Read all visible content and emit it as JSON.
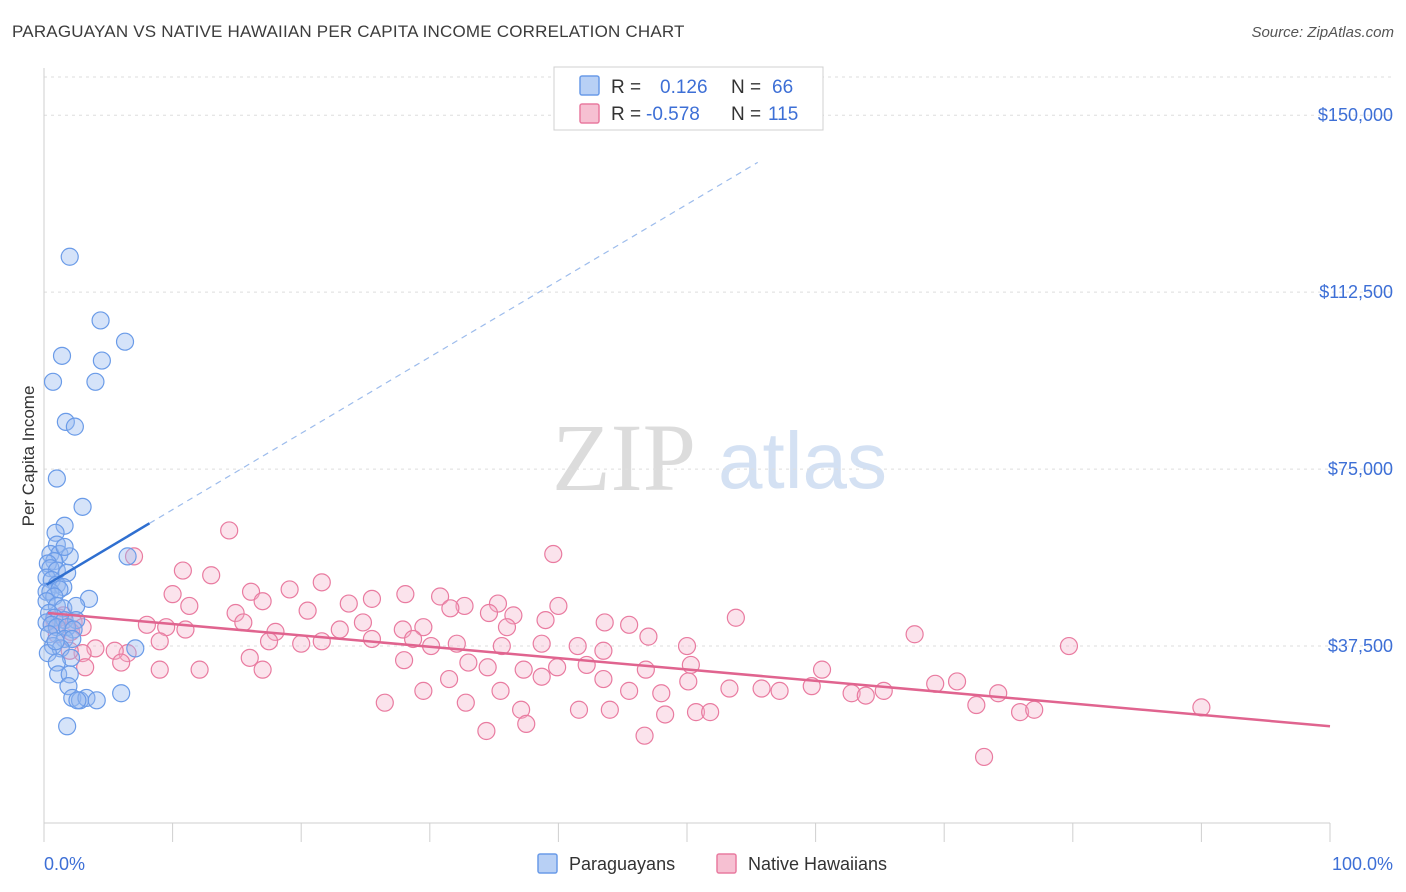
{
  "title": "PARAGUAYAN VS NATIVE HAWAIIAN PER CAPITA INCOME CORRELATION CHART",
  "source": "Source: ZipAtlas.com",
  "watermark": {
    "zip": "ZIP",
    "atlas": "atlas"
  },
  "colors": {
    "blue": "#6a9be8",
    "blue_fill": "#b8d0f5",
    "blue_line": "#2f6fd0",
    "pink": "#e97ba0",
    "pink_fill": "#f6c0d2",
    "pink_line": "#e0648f",
    "accent_text": "#3d6fd6"
  },
  "legend": {
    "rows": [
      {
        "r_label": "R =",
        "r_value": "0.126",
        "n_label": "N =",
        "n_value": "66"
      },
      {
        "r_label": "R =",
        "r_value": "-0.578",
        "n_label": "N =",
        "n_value": "115"
      }
    ]
  },
  "bottom_legend": {
    "items": [
      "Paraguayans",
      "Native Hawaiians"
    ]
  },
  "chart_data": {
    "type": "scatter",
    "title": "PARAGUAYAN VS NATIVE HAWAIIAN PER CAPITA INCOME CORRELATION CHART",
    "xlabel": "",
    "ylabel": "Per Capita Income",
    "xlim": [
      0,
      100
    ],
    "ylim": [
      0,
      160000
    ],
    "x_tick_labels": [
      "0.0%",
      "100.0%"
    ],
    "y_ticks": [
      37500,
      75000,
      112500,
      150000
    ],
    "y_tick_labels": [
      "$37,500",
      "$75,000",
      "$112,500",
      "$150,000"
    ],
    "grid": "horizontal dashed",
    "legend_placement": "top-center",
    "series": [
      {
        "name": "Paraguayans",
        "color": "#6a9be8",
        "r": 0.126,
        "n": 66,
        "trend": {
          "x": [
            0.2,
            8.2
          ],
          "y": [
            50500,
            63500
          ],
          "dashed_extension_to": [
            55.5,
            140000
          ]
        },
        "points": [
          [
            2.0,
            120000
          ],
          [
            4.4,
            106500
          ],
          [
            6.3,
            102000
          ],
          [
            1.4,
            99000
          ],
          [
            4.5,
            98000
          ],
          [
            0.7,
            93500
          ],
          [
            4.0,
            93500
          ],
          [
            1.7,
            85000
          ],
          [
            2.4,
            84000
          ],
          [
            1.0,
            73000
          ],
          [
            3.0,
            67000
          ],
          [
            1.6,
            63000
          ],
          [
            0.9,
            61500
          ],
          [
            1.0,
            59000
          ],
          [
            0.5,
            57000
          ],
          [
            1.2,
            57000
          ],
          [
            2.0,
            56500
          ],
          [
            6.5,
            56500
          ],
          [
            1.6,
            58500
          ],
          [
            0.8,
            55500
          ],
          [
            0.3,
            55000
          ],
          [
            0.5,
            54000
          ],
          [
            1.0,
            53500
          ],
          [
            1.8,
            53000
          ],
          [
            0.2,
            52000
          ],
          [
            0.6,
            51500
          ],
          [
            1.0,
            50500
          ],
          [
            1.5,
            50000
          ],
          [
            0.2,
            49000
          ],
          [
            0.5,
            49000
          ],
          [
            1.2,
            49500
          ],
          [
            0.8,
            48000
          ],
          [
            3.5,
            47500
          ],
          [
            0.2,
            47000
          ],
          [
            1.0,
            46000
          ],
          [
            1.5,
            45500
          ],
          [
            2.5,
            46000
          ],
          [
            0.4,
            44500
          ],
          [
            0.8,
            43500
          ],
          [
            1.6,
            43000
          ],
          [
            2.5,
            43000
          ],
          [
            0.2,
            42500
          ],
          [
            0.6,
            42000
          ],
          [
            1.0,
            41500
          ],
          [
            1.8,
            41500
          ],
          [
            2.3,
            41000
          ],
          [
            0.4,
            40000
          ],
          [
            1.6,
            39000
          ],
          [
            2.2,
            39000
          ],
          [
            0.7,
            37500
          ],
          [
            1.3,
            37000
          ],
          [
            7.1,
            37000
          ],
          [
            0.3,
            36000
          ],
          [
            2.1,
            35000
          ],
          [
            1.0,
            34000
          ],
          [
            1.1,
            31500
          ],
          [
            2.0,
            31500
          ],
          [
            1.9,
            29000
          ],
          [
            2.2,
            26500
          ],
          [
            2.8,
            26000
          ],
          [
            3.3,
            26500
          ],
          [
            4.1,
            26000
          ],
          [
            6.0,
            27500
          ],
          [
            2.6,
            26000
          ],
          [
            1.8,
            20500
          ],
          [
            0.9,
            38500
          ]
        ]
      },
      {
        "name": "Native Hawaiians",
        "color": "#e97ba0",
        "r": -0.578,
        "n": 115,
        "trend": {
          "x": [
            0.3,
            100.0
          ],
          "y": [
            44500,
            20500
          ]
        },
        "points": [
          [
            14.4,
            62000
          ],
          [
            7.0,
            56500
          ],
          [
            39.6,
            57000
          ],
          [
            10.8,
            53500
          ],
          [
            13.0,
            52500
          ],
          [
            19.1,
            49500
          ],
          [
            21.6,
            51000
          ],
          [
            16.1,
            49000
          ],
          [
            10.0,
            48500
          ],
          [
            17.0,
            47000
          ],
          [
            23.7,
            46500
          ],
          [
            25.5,
            47500
          ],
          [
            28.1,
            48500
          ],
          [
            30.8,
            48000
          ],
          [
            32.7,
            46000
          ],
          [
            35.3,
            46500
          ],
          [
            11.3,
            46000
          ],
          [
            14.9,
            44500
          ],
          [
            20.5,
            45000
          ],
          [
            31.6,
            45500
          ],
          [
            34.6,
            44500
          ],
          [
            36.5,
            44000
          ],
          [
            40.0,
            46000
          ],
          [
            8.0,
            42000
          ],
          [
            9.5,
            41500
          ],
          [
            15.5,
            42500
          ],
          [
            18.0,
            40500
          ],
          [
            23.0,
            41000
          ],
          [
            24.8,
            42500
          ],
          [
            27.9,
            41000
          ],
          [
            29.5,
            41500
          ],
          [
            36.0,
            41500
          ],
          [
            39.0,
            43000
          ],
          [
            43.6,
            42500
          ],
          [
            45.5,
            42000
          ],
          [
            53.8,
            43500
          ],
          [
            11.0,
            41000
          ],
          [
            17.5,
            38500
          ],
          [
            20.0,
            38000
          ],
          [
            21.6,
            38500
          ],
          [
            25.5,
            39000
          ],
          [
            28.7,
            39000
          ],
          [
            30.1,
            37500
          ],
          [
            32.1,
            38000
          ],
          [
            35.6,
            37500
          ],
          [
            38.7,
            38000
          ],
          [
            41.5,
            37500
          ],
          [
            43.5,
            36500
          ],
          [
            47.0,
            39500
          ],
          [
            50.0,
            37500
          ],
          [
            67.7,
            40000
          ],
          [
            79.7,
            37500
          ],
          [
            9.0,
            38500
          ],
          [
            6.5,
            36000
          ],
          [
            4.0,
            37000
          ],
          [
            5.5,
            36500
          ],
          [
            3.0,
            36000
          ],
          [
            2.0,
            36500
          ],
          [
            16.0,
            35000
          ],
          [
            28.0,
            34500
          ],
          [
            33.0,
            34000
          ],
          [
            34.5,
            33000
          ],
          [
            37.3,
            32500
          ],
          [
            39.9,
            33000
          ],
          [
            42.2,
            33500
          ],
          [
            46.8,
            32500
          ],
          [
            50.3,
            33500
          ],
          [
            60.5,
            32500
          ],
          [
            6.0,
            34000
          ],
          [
            9.0,
            32500
          ],
          [
            3.2,
            33000
          ],
          [
            12.1,
            32500
          ],
          [
            17.0,
            32500
          ],
          [
            29.5,
            28000
          ],
          [
            31.5,
            30500
          ],
          [
            35.5,
            28000
          ],
          [
            38.7,
            31000
          ],
          [
            43.5,
            30500
          ],
          [
            45.5,
            28000
          ],
          [
            48.0,
            27500
          ],
          [
            50.1,
            30000
          ],
          [
            53.3,
            28500
          ],
          [
            55.8,
            28500
          ],
          [
            59.7,
            29000
          ],
          [
            62.8,
            27500
          ],
          [
            63.9,
            27000
          ],
          [
            65.3,
            28000
          ],
          [
            69.3,
            29500
          ],
          [
            72.5,
            25000
          ],
          [
            74.2,
            27500
          ],
          [
            75.9,
            23500
          ],
          [
            90.0,
            24500
          ],
          [
            1.5,
            44000
          ],
          [
            0.8,
            43000
          ],
          [
            1.2,
            43500
          ],
          [
            2.3,
            42500
          ],
          [
            0.6,
            42000
          ],
          [
            3.0,
            41500
          ],
          [
            2.1,
            40500
          ],
          [
            1.0,
            40000
          ],
          [
            26.5,
            25500
          ],
          [
            32.8,
            25500
          ],
          [
            37.1,
            24000
          ],
          [
            41.6,
            24000
          ],
          [
            44.0,
            24000
          ],
          [
            50.7,
            23500
          ],
          [
            51.8,
            23500
          ],
          [
            34.4,
            19500
          ],
          [
            37.5,
            21000
          ],
          [
            46.7,
            18500
          ],
          [
            57.2,
            28000
          ],
          [
            73.1,
            14000
          ],
          [
            71.0,
            30000
          ],
          [
            77.0,
            24000
          ],
          [
            48.3,
            23000
          ]
        ]
      }
    ]
  }
}
